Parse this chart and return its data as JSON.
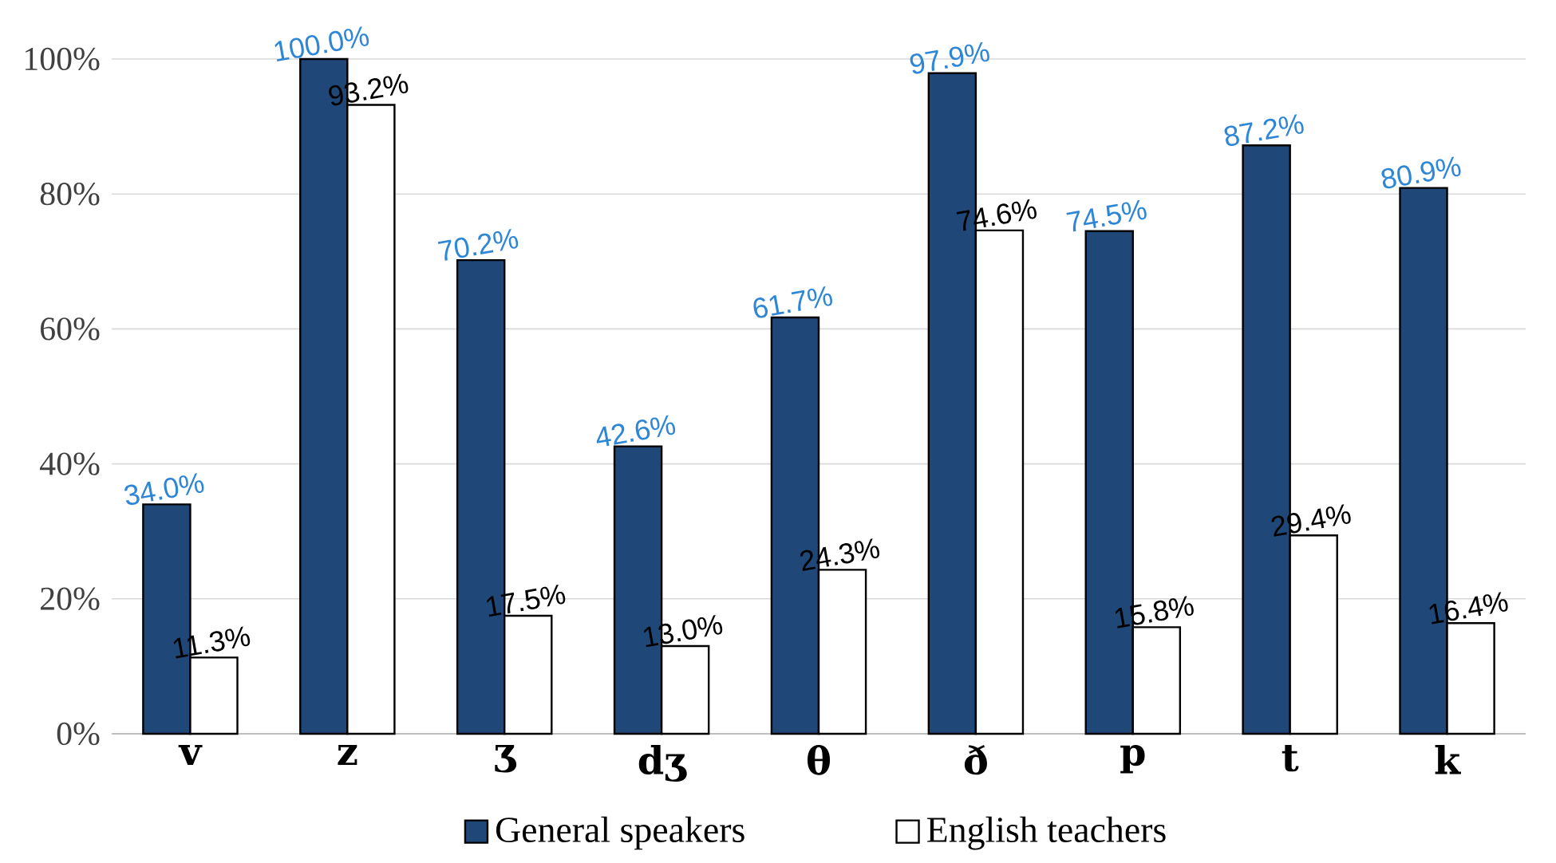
{
  "chart_data": {
    "type": "bar",
    "categories": [
      "v",
      "z",
      "ʒ",
      "dʒ",
      "θ",
      "ð",
      "p",
      "t",
      "k"
    ],
    "series": [
      {
        "name": "General speakers",
        "color": "#1f4878",
        "values": [
          34.0,
          100.0,
          70.2,
          42.6,
          61.7,
          97.9,
          74.5,
          87.2,
          80.9
        ],
        "value_labels": [
          "34.0%",
          "100.0%",
          "70.2%",
          "42.6%",
          "61.7%",
          "97.9%",
          "74.5%",
          "87.2%",
          "80.9%"
        ]
      },
      {
        "name": "English teachers",
        "color": "#ffffff",
        "values": [
          11.3,
          93.2,
          17.5,
          13.0,
          24.3,
          74.6,
          15.8,
          29.4,
          16.4
        ],
        "value_labels": [
          "11.3%",
          "93.2%",
          "17.5%",
          "13.0%",
          "24.3%",
          "74.6%",
          "15.8%",
          "29.4%",
          "16.4%"
        ]
      }
    ],
    "ylim": [
      0,
      100
    ],
    "yticks": [
      {
        "value": 0,
        "label": "0%"
      },
      {
        "value": 20,
        "label": "20%"
      },
      {
        "value": 40,
        "label": "40%"
      },
      {
        "value": 60,
        "label": "60%"
      },
      {
        "value": 80,
        "label": "80%"
      },
      {
        "value": 100,
        "label": "100%"
      }
    ],
    "grid": "y",
    "legend": "bottom"
  }
}
